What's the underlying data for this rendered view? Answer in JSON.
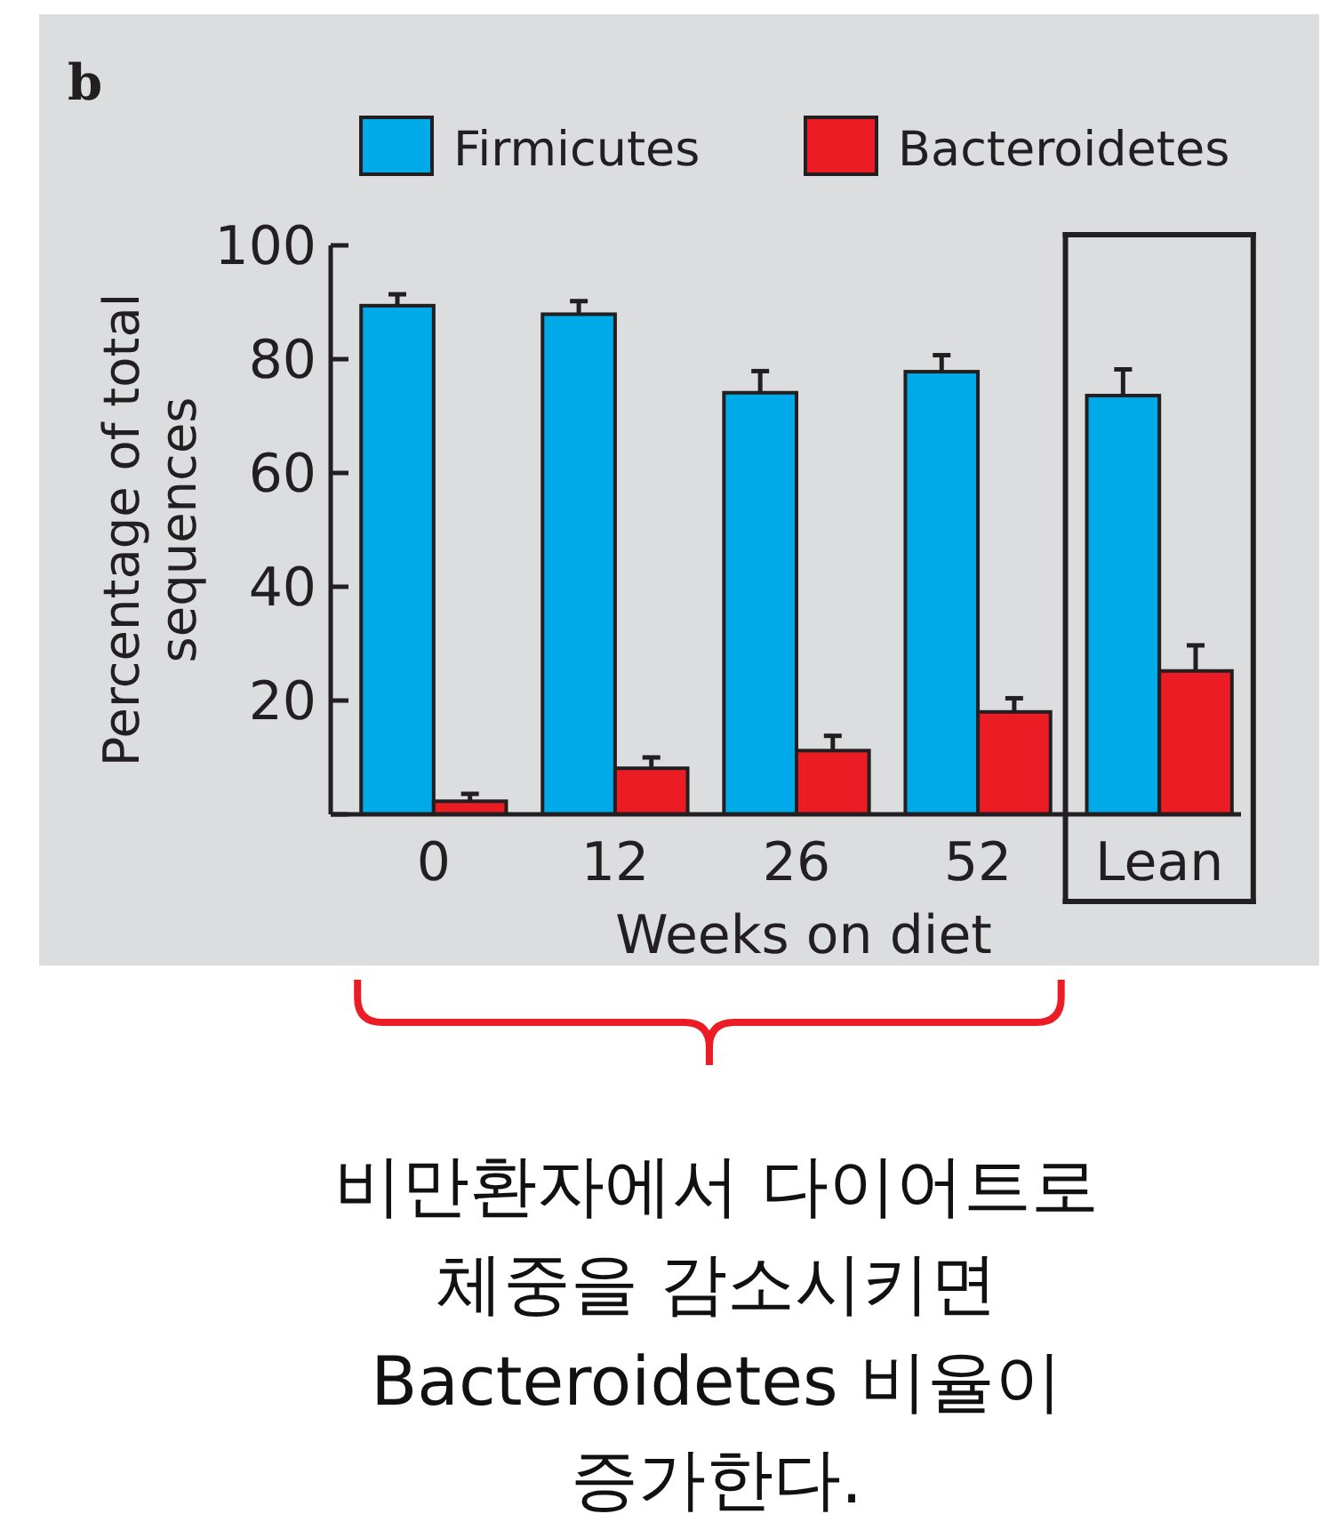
{
  "chart_data": {
    "type": "bar",
    "title": "b",
    "xlabel": "Weeks on diet",
    "ylabel": "Percentage of total sequences",
    "categories": [
      "0",
      "12",
      "26",
      "52",
      "Lean"
    ],
    "series": [
      {
        "name": "Firmicutes",
        "color": "#00a9e8",
        "values": [
          89.4,
          87.9,
          74.1,
          77.8,
          73.6
        ],
        "errors": [
          [
            89.4,
            91.4
          ],
          [
            87.9,
            90.2
          ],
          [
            74.1,
            77.9
          ],
          [
            77.8,
            80.7
          ],
          [
            73.6,
            78.2
          ]
        ]
      },
      {
        "name": "Bacteroidetes",
        "color": "#ec1c24",
        "values": [
          2.3,
          8.1,
          11.2,
          18.0,
          25.2
        ],
        "errors": [
          [
            2.3,
            3.6
          ],
          [
            8.1,
            10.0
          ],
          [
            11.2,
            13.8
          ],
          [
            18.0,
            20.4
          ],
          [
            25.2,
            29.7
          ]
        ]
      }
    ],
    "ylim": [
      0,
      100
    ],
    "yticks": [
      {
        "value": 0,
        "label": null
      },
      20,
      40,
      60,
      80,
      100
    ],
    "legend": "top",
    "grid": false,
    "annotations": [
      "비만환자에서 다이어트로 체중을 감소시키면 Bacteroidetes 비율이 증가한다."
    ]
  }
}
